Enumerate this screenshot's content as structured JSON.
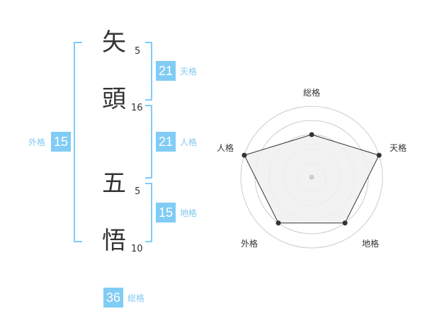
{
  "name": {
    "chars": [
      {
        "char": "矢",
        "strokes": "5"
      },
      {
        "char": "頭",
        "strokes": "16"
      },
      {
        "char": "五",
        "strokes": "5"
      },
      {
        "char": "悟",
        "strokes": "10"
      }
    ]
  },
  "kaku": {
    "tenkaku": {
      "label": "天格",
      "value": "21"
    },
    "jinkaku": {
      "label": "人格",
      "value": "21"
    },
    "chikaku": {
      "label": "地格",
      "value": "15"
    },
    "gaikaku": {
      "label": "外格",
      "value": "15"
    },
    "soukaku": {
      "label": "総格",
      "value": "36"
    }
  },
  "colors": {
    "accent": "#80ccf5",
    "bracket": "#80ccf5",
    "radar_fill": "#f0f0f0",
    "radar_line": "#333333"
  },
  "chart_data": {
    "type": "radar",
    "categories": [
      "総格",
      "天格",
      "地格",
      "外格",
      "人格"
    ],
    "values": [
      3,
      5,
      4,
      4,
      5
    ],
    "rlim": [
      0,
      5
    ],
    "grid": true
  }
}
